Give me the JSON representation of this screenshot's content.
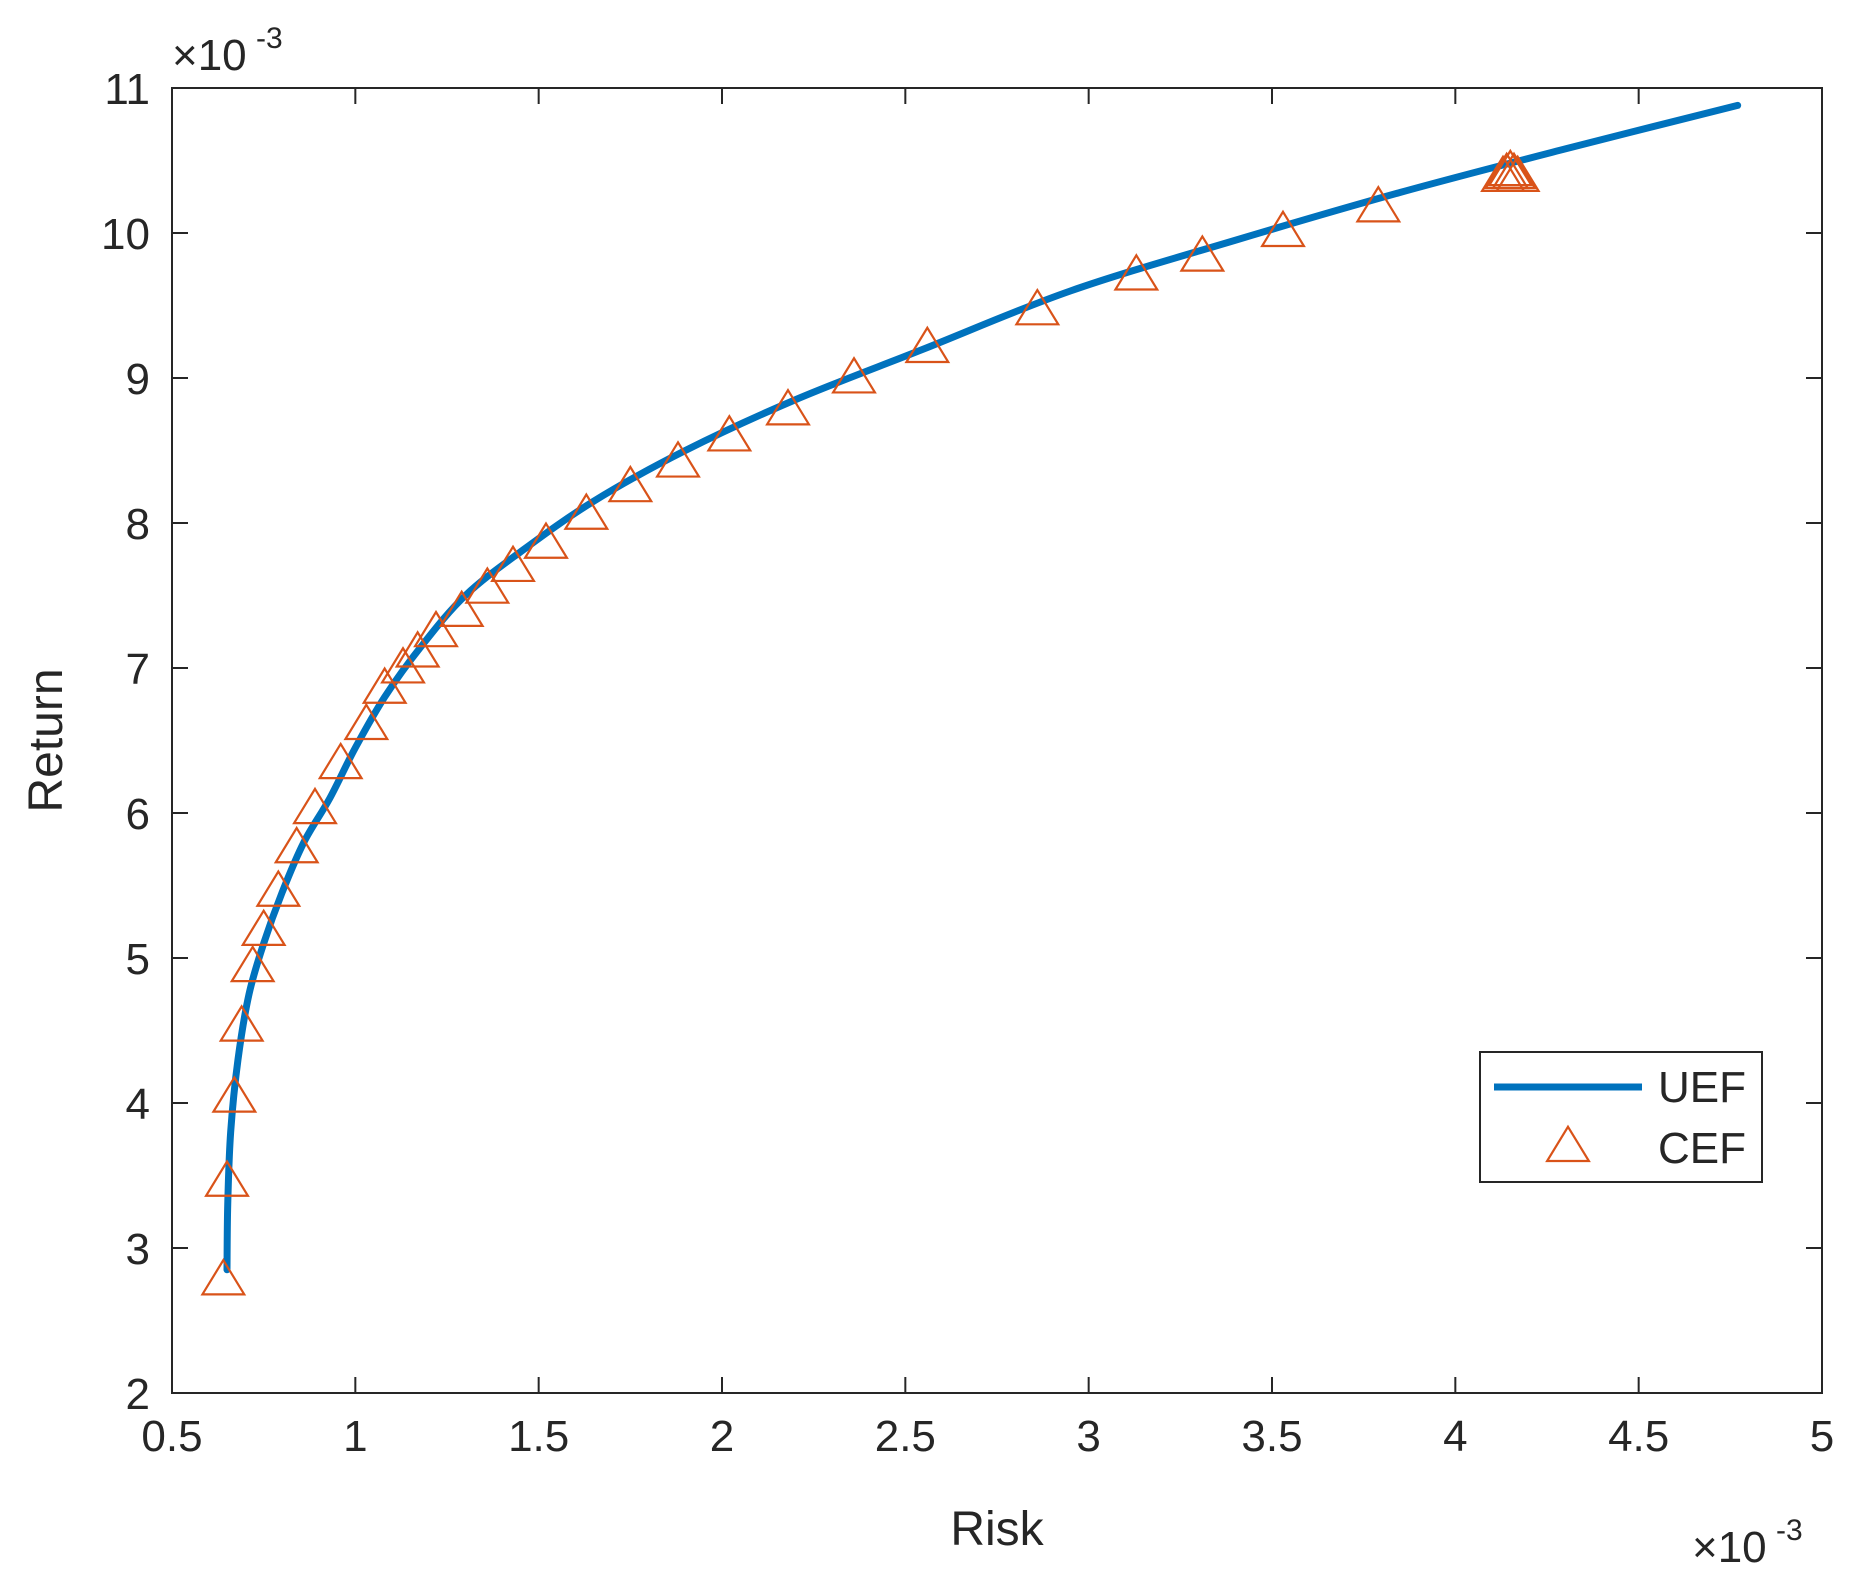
{
  "chart_data": {
    "type": "line",
    "xlabel": "Risk",
    "ylabel": "Return",
    "xlim": [
      0.5,
      5
    ],
    "ylim": [
      2,
      11
    ],
    "x_ticks": [
      0.5,
      1,
      1.5,
      2,
      2.5,
      3,
      3.5,
      4,
      4.5,
      5
    ],
    "x_tick_labels": [
      "0.5",
      "1",
      "1.5",
      "2",
      "2.5",
      "3",
      "3.5",
      "4",
      "4.5",
      "5"
    ],
    "y_ticks": [
      2,
      3,
      4,
      5,
      6,
      7,
      8,
      9,
      10,
      11
    ],
    "y_tick_labels": [
      "2",
      "3",
      "4",
      "5",
      "6",
      "7",
      "8",
      "9",
      "10",
      "11"
    ],
    "x_exponent": {
      "base": "×10",
      "power": "-3"
    },
    "y_exponent": {
      "base": "×10",
      "power": "-3"
    },
    "grid": false,
    "legend_position": "lower-right",
    "series": [
      {
        "name": "UEF",
        "style": "line",
        "color": "#0072BD",
        "x": [
          0.65,
          0.652,
          0.66,
          0.68,
          0.71,
          0.75,
          0.8,
          0.86,
          0.93,
          1.0,
          1.08,
          1.18,
          1.3,
          1.45,
          1.65,
          1.9,
          2.2,
          2.55,
          2.95,
          3.4,
          3.85,
          4.3,
          4.77
        ],
        "y": [
          2.85,
          3.3,
          3.8,
          4.3,
          4.75,
          5.1,
          5.45,
          5.8,
          6.1,
          6.45,
          6.8,
          7.15,
          7.5,
          7.8,
          8.15,
          8.5,
          8.85,
          9.2,
          9.6,
          9.95,
          10.28,
          10.58,
          10.88
        ]
      },
      {
        "name": "CEF",
        "style": "marker",
        "marker": "triangle",
        "color": "#D95319",
        "x": [
          0.64,
          0.65,
          0.67,
          0.69,
          0.72,
          0.75,
          0.79,
          0.84,
          0.89,
          0.96,
          1.03,
          1.08,
          1.13,
          1.17,
          1.22,
          1.29,
          1.36,
          1.43,
          1.52,
          1.63,
          1.75,
          1.88,
          2.02,
          2.18,
          2.36,
          2.56,
          2.86,
          3.13,
          3.31,
          3.53,
          3.79,
          4.13,
          4.14,
          4.15,
          4.16,
          4.17
        ],
        "y": [
          2.77,
          3.45,
          4.03,
          4.52,
          4.93,
          5.18,
          5.45,
          5.75,
          6.02,
          6.33,
          6.6,
          6.85,
          6.99,
          7.1,
          7.24,
          7.38,
          7.54,
          7.69,
          7.85,
          8.05,
          8.24,
          8.41,
          8.59,
          8.77,
          8.99,
          9.2,
          9.46,
          9.7,
          9.83,
          10.0,
          10.17,
          10.38,
          10.4,
          10.42,
          10.4,
          10.38
        ]
      }
    ]
  }
}
